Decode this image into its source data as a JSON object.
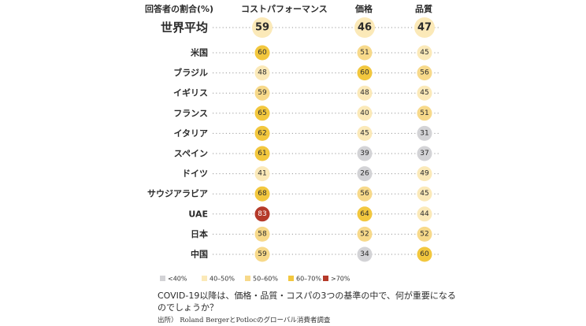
{
  "chart_data": {
    "type": "table",
    "ylabel": "回答者の割合(%)",
    "columns": [
      "コストパフォーマンス",
      "価格",
      "品質"
    ],
    "categories": [
      "世界平均",
      "米国",
      "ブラジル",
      "イギリス",
      "フランス",
      "イタリア",
      "スペイン",
      "ドイツ",
      "サウジアラビア",
      "UAE",
      "日本",
      "中国"
    ],
    "series": [
      {
        "name": "コストパフォーマンス",
        "values": [
          59,
          60,
          48,
          59,
          65,
          62,
          61,
          41,
          68,
          83,
          58,
          59
        ]
      },
      {
        "name": "価格",
        "values": [
          46,
          51,
          60,
          48,
          40,
          45,
          39,
          26,
          56,
          64,
          52,
          34
        ]
      },
      {
        "name": "品質",
        "values": [
          47,
          45,
          56,
          45,
          51,
          31,
          37,
          49,
          45,
          44,
          52,
          60
        ]
      }
    ],
    "legend": {
      "placement": "bottom",
      "items": [
        {
          "label": "<40%",
          "color": "#d3d3d6"
        },
        {
          "label": "40–50%",
          "color": "#fbe9b8"
        },
        {
          "label": "50–60%",
          "color": "#f7d98a"
        },
        {
          "label": "60–70%",
          "color": "#f2c73e"
        },
        {
          "label": ">70%",
          "color": "#b53a2a"
        }
      ]
    }
  },
  "question": "COVID-19以降は、価格・品質・コスパの3つの基準の中で、何が重要になるのでしょうか？",
  "source": "出所） Roland BergerとPotlocのグローバル消費者調査"
}
